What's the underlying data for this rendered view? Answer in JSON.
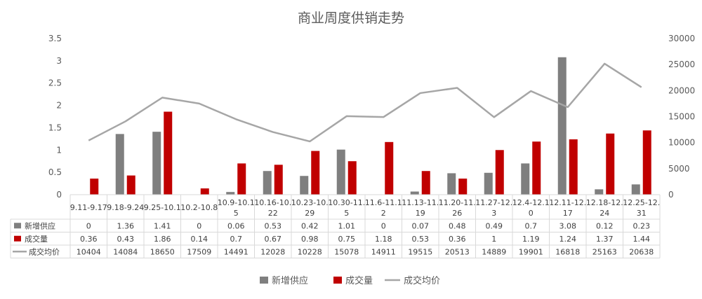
{
  "chart_data": {
    "type": "bar+line",
    "title": "商业周度供销走势",
    "categories": [
      [
        "9.11-9.17"
      ],
      [
        "9.18-9.24"
      ],
      [
        "9.25-10.1"
      ],
      [
        "10.2-10.8"
      ],
      [
        "10.9-10.1",
        "5"
      ],
      [
        "10.16-10.",
        "22"
      ],
      [
        "10.23-10.",
        "29"
      ],
      [
        "10.30-11.",
        "5"
      ],
      [
        "11.6-11.1",
        "2"
      ],
      [
        "11.13-11.",
        "19"
      ],
      [
        "11.20-11.",
        "26"
      ],
      [
        "11.27-12.",
        "3"
      ],
      [
        "12.4-12.1",
        "0"
      ],
      [
        "12.11-12.",
        "17"
      ],
      [
        "12.18-12.",
        "24"
      ],
      [
        "12.25-12.",
        "31"
      ]
    ],
    "series": [
      {
        "name": "新增供应",
        "type": "bar",
        "axis": "left",
        "color": "#7f7f7f",
        "values": [
          0,
          1.36,
          1.41,
          0,
          0.06,
          0.53,
          0.42,
          1.01,
          0,
          0.07,
          0.48,
          0.49,
          0.7,
          3.08,
          0.12,
          0.23
        ],
        "labels": [
          "0",
          "1.36",
          "1.41",
          "0",
          "0.06",
          "0.53",
          "0.42",
          "1.01",
          "0",
          "0.07",
          "0.48",
          "0.49",
          "0.7",
          "3.08",
          "0.12",
          "0.23"
        ]
      },
      {
        "name": "成交量",
        "type": "bar",
        "axis": "left",
        "color": "#c00000",
        "values": [
          0.36,
          0.43,
          1.86,
          0.14,
          0.7,
          0.67,
          0.98,
          0.75,
          1.18,
          0.53,
          0.36,
          1,
          1.19,
          1.24,
          1.37,
          1.44
        ],
        "labels": [
          "0.36",
          "0.43",
          "1.86",
          "0.14",
          "0.7",
          "0.67",
          "0.98",
          "0.75",
          "1.18",
          "0.53",
          "0.36",
          "1",
          "1.19",
          "1.24",
          "1.37",
          "1.44"
        ]
      },
      {
        "name": "成交均价",
        "type": "line",
        "axis": "right",
        "color": "#a6a6a6",
        "values": [
          10404,
          14084,
          18650,
          17509,
          14491,
          12028,
          10228,
          15078,
          14911,
          19515,
          20513,
          14889,
          19901,
          16818,
          25163,
          20638
        ],
        "labels": [
          "10404",
          "14084",
          "18650",
          "17509",
          "14491",
          "12028",
          "10228",
          "15078",
          "14911",
          "19515",
          "20513",
          "14889",
          "19901",
          "16818",
          "25163",
          "20638"
        ]
      }
    ],
    "y_left": {
      "range": [
        0,
        3.5
      ],
      "ticks": [
        0,
        0.5,
        1,
        1.5,
        2,
        2.5,
        3,
        3.5
      ],
      "tick_labels": [
        "0",
        "0.5",
        "1",
        "1.5",
        "2",
        "2.5",
        "3",
        "3.5"
      ]
    },
    "y_right": {
      "range": [
        0,
        30000
      ],
      "ticks": [
        0,
        5000,
        10000,
        15000,
        20000,
        25000,
        30000
      ],
      "tick_labels": [
        "0",
        "5000",
        "10000",
        "15000",
        "20000",
        "25000",
        "30000"
      ]
    },
    "grid": false,
    "legend": "bottom",
    "data_table": true
  }
}
